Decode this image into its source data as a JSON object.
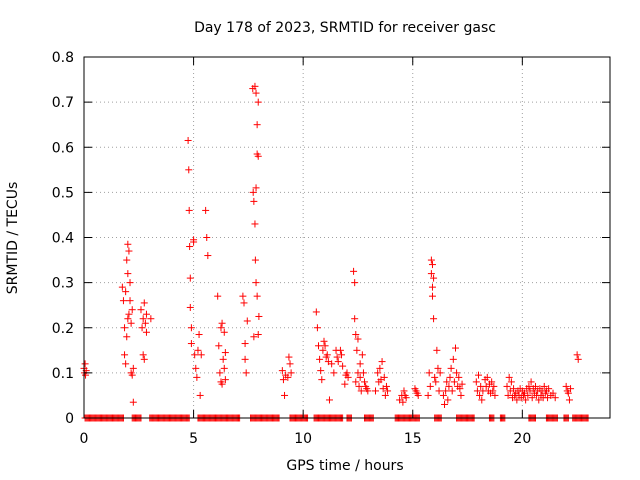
{
  "chart_data": {
    "type": "scatter",
    "title": "Day 178 of 2023, SRMTID for receiver gasc",
    "xlabel": "GPS time / hours",
    "ylabel": "SRMTID / TECUs",
    "xlim": [
      0,
      24
    ],
    "ylim": [
      0,
      0.8
    ],
    "xticks": [
      0,
      5,
      10,
      15,
      20
    ],
    "xtick_labels": [
      "0",
      "5",
      "10",
      "15",
      "20"
    ],
    "yticks": [
      0,
      0.1,
      0.2,
      0.3,
      0.4,
      0.5,
      0.6,
      0.7,
      0.8
    ],
    "ytick_labels": [
      "0",
      "0.1",
      "0.2",
      "0.3",
      "0.4",
      "0.5",
      "0.6",
      "0.7",
      "0.8"
    ],
    "grid": true,
    "marker": "+",
    "color": "#ff0000",
    "series": [
      {
        "name": "SRMTID",
        "points": [
          [
            0.0,
            0.11
          ],
          [
            0.02,
            0.1
          ],
          [
            0.05,
            0.12
          ],
          [
            0.07,
            0.095
          ],
          [
            0.1,
            0.105
          ],
          [
            1.75,
            0.29
          ],
          [
            1.8,
            0.26
          ],
          [
            1.85,
            0.2
          ],
          [
            1.85,
            0.14
          ],
          [
            1.9,
            0.28
          ],
          [
            1.9,
            0.12
          ],
          [
            1.95,
            0.35
          ],
          [
            1.95,
            0.18
          ],
          [
            2.0,
            0.385
          ],
          [
            2.0,
            0.32
          ],
          [
            2.0,
            0.22
          ],
          [
            2.05,
            0.37
          ],
          [
            2.05,
            0.23
          ],
          [
            2.1,
            0.3
          ],
          [
            2.1,
            0.26
          ],
          [
            2.15,
            0.21
          ],
          [
            2.15,
            0.1
          ],
          [
            2.2,
            0.24
          ],
          [
            2.2,
            0.095
          ],
          [
            2.25,
            0.035
          ],
          [
            2.25,
            0.11
          ],
          [
            2.6,
            0.24
          ],
          [
            2.65,
            0.2
          ],
          [
            2.7,
            0.22
          ],
          [
            2.7,
            0.14
          ],
          [
            2.75,
            0.255
          ],
          [
            2.75,
            0.13
          ],
          [
            2.8,
            0.21
          ],
          [
            2.85,
            0.23
          ],
          [
            2.85,
            0.19
          ],
          [
            3.05,
            0.22
          ],
          [
            4.75,
            0.615
          ],
          [
            4.78,
            0.55
          ],
          [
            4.8,
            0.46
          ],
          [
            4.82,
            0.38
          ],
          [
            4.85,
            0.31
          ],
          [
            4.85,
            0.245
          ],
          [
            4.9,
            0.2
          ],
          [
            4.9,
            0.165
          ],
          [
            5.0,
            0.39
          ],
          [
            5.0,
            0.395
          ],
          [
            5.05,
            0.14
          ],
          [
            5.1,
            0.11
          ],
          [
            5.15,
            0.09
          ],
          [
            5.2,
            0.15
          ],
          [
            5.25,
            0.185
          ],
          [
            5.3,
            0.05
          ],
          [
            5.35,
            0.14
          ],
          [
            5.55,
            0.46
          ],
          [
            5.6,
            0.4
          ],
          [
            5.65,
            0.36
          ],
          [
            6.1,
            0.27
          ],
          [
            6.15,
            0.16
          ],
          [
            6.2,
            0.1
          ],
          [
            6.25,
            0.08
          ],
          [
            6.25,
            0.2
          ],
          [
            6.3,
            0.21
          ],
          [
            6.3,
            0.075
          ],
          [
            6.35,
            0.13
          ],
          [
            6.4,
            0.19
          ],
          [
            6.4,
            0.11
          ],
          [
            6.45,
            0.145
          ],
          [
            6.45,
            0.085
          ],
          [
            7.25,
            0.27
          ],
          [
            7.3,
            0.255
          ],
          [
            7.35,
            0.165
          ],
          [
            7.35,
            0.13
          ],
          [
            7.4,
            0.1
          ],
          [
            7.45,
            0.215
          ],
          [
            7.7,
            0.73
          ],
          [
            7.72,
            0.5
          ],
          [
            7.75,
            0.48
          ],
          [
            7.75,
            0.18
          ],
          [
            7.8,
            0.735
          ],
          [
            7.8,
            0.43
          ],
          [
            7.82,
            0.35
          ],
          [
            7.85,
            0.72
          ],
          [
            7.85,
            0.51
          ],
          [
            7.85,
            0.3
          ],
          [
            7.9,
            0.65
          ],
          [
            7.9,
            0.585
          ],
          [
            7.9,
            0.27
          ],
          [
            7.95,
            0.7
          ],
          [
            7.95,
            0.58
          ],
          [
            7.95,
            0.185
          ],
          [
            7.98,
            0.225
          ],
          [
            9.05,
            0.105
          ],
          [
            9.1,
            0.085
          ],
          [
            9.15,
            0.05
          ],
          [
            9.2,
            0.095
          ],
          [
            9.3,
            0.09
          ],
          [
            9.35,
            0.135
          ],
          [
            9.4,
            0.12
          ],
          [
            9.45,
            0.1
          ],
          [
            10.6,
            0.235
          ],
          [
            10.65,
            0.2
          ],
          [
            10.7,
            0.16
          ],
          [
            10.75,
            0.13
          ],
          [
            10.8,
            0.105
          ],
          [
            10.85,
            0.085
          ],
          [
            10.9,
            0.15
          ],
          [
            10.95,
            0.17
          ],
          [
            11.0,
            0.16
          ],
          [
            11.05,
            0.135
          ],
          [
            11.1,
            0.14
          ],
          [
            11.15,
            0.125
          ],
          [
            11.2,
            0.04
          ],
          [
            11.3,
            0.12
          ],
          [
            11.4,
            0.1
          ],
          [
            11.5,
            0.15
          ],
          [
            11.55,
            0.135
          ],
          [
            11.6,
            0.125
          ],
          [
            11.7,
            0.15
          ],
          [
            11.75,
            0.14
          ],
          [
            11.8,
            0.115
          ],
          [
            11.9,
            0.075
          ],
          [
            11.95,
            0.095
          ],
          [
            12.0,
            0.1
          ],
          [
            12.05,
            0.09
          ],
          [
            12.3,
            0.325
          ],
          [
            12.35,
            0.3
          ],
          [
            12.35,
            0.22
          ],
          [
            12.4,
            0.185
          ],
          [
            12.4,
            0.08
          ],
          [
            12.45,
            0.15
          ],
          [
            12.5,
            0.175
          ],
          [
            12.5,
            0.1
          ],
          [
            12.55,
            0.07
          ],
          [
            12.6,
            0.12
          ],
          [
            12.6,
            0.09
          ],
          [
            12.65,
            0.06
          ],
          [
            12.7,
            0.14
          ],
          [
            12.75,
            0.1
          ],
          [
            12.8,
            0.08
          ],
          [
            12.85,
            0.07
          ],
          [
            12.9,
            0.065
          ],
          [
            12.95,
            0.06
          ],
          [
            13.3,
            0.06
          ],
          [
            13.4,
            0.1
          ],
          [
            13.45,
            0.08
          ],
          [
            13.5,
            0.11
          ],
          [
            13.55,
            0.085
          ],
          [
            13.6,
            0.125
          ],
          [
            13.65,
            0.065
          ],
          [
            13.7,
            0.09
          ],
          [
            13.75,
            0.05
          ],
          [
            13.8,
            0.07
          ],
          [
            13.85,
            0.06
          ],
          [
            14.4,
            0.04
          ],
          [
            14.5,
            0.05
          ],
          [
            14.55,
            0.035
          ],
          [
            14.6,
            0.06
          ],
          [
            14.65,
            0.05
          ],
          [
            14.7,
            0.045
          ],
          [
            15.1,
            0.065
          ],
          [
            15.15,
            0.06
          ],
          [
            15.2,
            0.055
          ],
          [
            15.25,
            0.05
          ],
          [
            15.7,
            0.05
          ],
          [
            15.75,
            0.1
          ],
          [
            15.8,
            0.07
          ],
          [
            15.85,
            0.35
          ],
          [
            15.85,
            0.32
          ],
          [
            15.9,
            0.34
          ],
          [
            15.9,
            0.29
          ],
          [
            15.9,
            0.27
          ],
          [
            15.95,
            0.31
          ],
          [
            15.95,
            0.22
          ],
          [
            16.0,
            0.09
          ],
          [
            16.05,
            0.08
          ],
          [
            16.1,
            0.15
          ],
          [
            16.15,
            0.11
          ],
          [
            16.2,
            0.06
          ],
          [
            16.25,
            0.1
          ],
          [
            16.4,
            0.05
          ],
          [
            16.45,
            0.03
          ],
          [
            16.5,
            0.06
          ],
          [
            16.55,
            0.08
          ],
          [
            16.6,
            0.04
          ],
          [
            16.65,
            0.07
          ],
          [
            16.7,
            0.09
          ],
          [
            16.75,
            0.11
          ],
          [
            16.8,
            0.06
          ],
          [
            16.85,
            0.13
          ],
          [
            16.9,
            0.08
          ],
          [
            16.95,
            0.155
          ],
          [
            17.0,
            0.1
          ],
          [
            17.05,
            0.07
          ],
          [
            17.1,
            0.09
          ],
          [
            17.15,
            0.065
          ],
          [
            17.2,
            0.05
          ],
          [
            17.25,
            0.075
          ],
          [
            17.9,
            0.08
          ],
          [
            17.95,
            0.06
          ],
          [
            18.0,
            0.095
          ],
          [
            18.05,
            0.05
          ],
          [
            18.1,
            0.07
          ],
          [
            18.15,
            0.04
          ],
          [
            18.2,
            0.06
          ],
          [
            18.3,
            0.085
          ],
          [
            18.35,
            0.07
          ],
          [
            18.4,
            0.09
          ],
          [
            18.45,
            0.06
          ],
          [
            18.5,
            0.075
          ],
          [
            18.55,
            0.055
          ],
          [
            18.6,
            0.08
          ],
          [
            18.65,
            0.06
          ],
          [
            18.7,
            0.07
          ],
          [
            18.75,
            0.05
          ],
          [
            19.3,
            0.07
          ],
          [
            19.35,
            0.05
          ],
          [
            19.4,
            0.09
          ],
          [
            19.45,
            0.06
          ],
          [
            19.5,
            0.08
          ],
          [
            19.55,
            0.045
          ],
          [
            19.6,
            0.065
          ],
          [
            19.65,
            0.05
          ],
          [
            19.7,
            0.055
          ],
          [
            19.75,
            0.04
          ],
          [
            19.8,
            0.06
          ],
          [
            19.85,
            0.05
          ],
          [
            19.9,
            0.065
          ],
          [
            19.95,
            0.045
          ],
          [
            20.0,
            0.06
          ],
          [
            20.05,
            0.05
          ],
          [
            20.1,
            0.055
          ],
          [
            20.15,
            0.04
          ],
          [
            20.2,
            0.065
          ],
          [
            20.25,
            0.05
          ],
          [
            20.3,
            0.07
          ],
          [
            20.35,
            0.06
          ],
          [
            20.4,
            0.08
          ],
          [
            20.45,
            0.045
          ],
          [
            20.5,
            0.065
          ],
          [
            20.55,
            0.055
          ],
          [
            20.6,
            0.07
          ],
          [
            20.65,
            0.05
          ],
          [
            20.7,
            0.06
          ],
          [
            20.75,
            0.04
          ],
          [
            20.8,
            0.065
          ],
          [
            20.85,
            0.05
          ],
          [
            20.9,
            0.06
          ],
          [
            20.95,
            0.045
          ],
          [
            21.0,
            0.07
          ],
          [
            21.05,
            0.055
          ],
          [
            21.1,
            0.06
          ],
          [
            21.15,
            0.045
          ],
          [
            21.2,
            0.065
          ],
          [
            21.3,
            0.05
          ],
          [
            21.4,
            0.055
          ],
          [
            21.5,
            0.045
          ],
          [
            22.0,
            0.07
          ],
          [
            22.05,
            0.06
          ],
          [
            22.1,
            0.055
          ],
          [
            22.15,
            0.04
          ],
          [
            22.2,
            0.065
          ],
          [
            22.5,
            0.14
          ],
          [
            22.55,
            0.13
          ]
        ],
        "zero_segments": [
          [
            0.05,
            1.8
          ],
          [
            2.2,
            2.6
          ],
          [
            3.0,
            4.8
          ],
          [
            5.2,
            7.1
          ],
          [
            7.6,
            8.9
          ],
          [
            9.4,
            10.2
          ],
          [
            10.5,
            11.8
          ],
          [
            12.0,
            12.2
          ],
          [
            12.8,
            13.2
          ],
          [
            14.2,
            15.3
          ],
          [
            16.0,
            16.3
          ],
          [
            17.0,
            17.8
          ],
          [
            18.5,
            18.7
          ],
          [
            19.0,
            19.2
          ],
          [
            20.3,
            20.6
          ],
          [
            21.1,
            21.6
          ],
          [
            21.9,
            22.1
          ],
          [
            22.3,
            23.0
          ]
        ]
      }
    ]
  }
}
